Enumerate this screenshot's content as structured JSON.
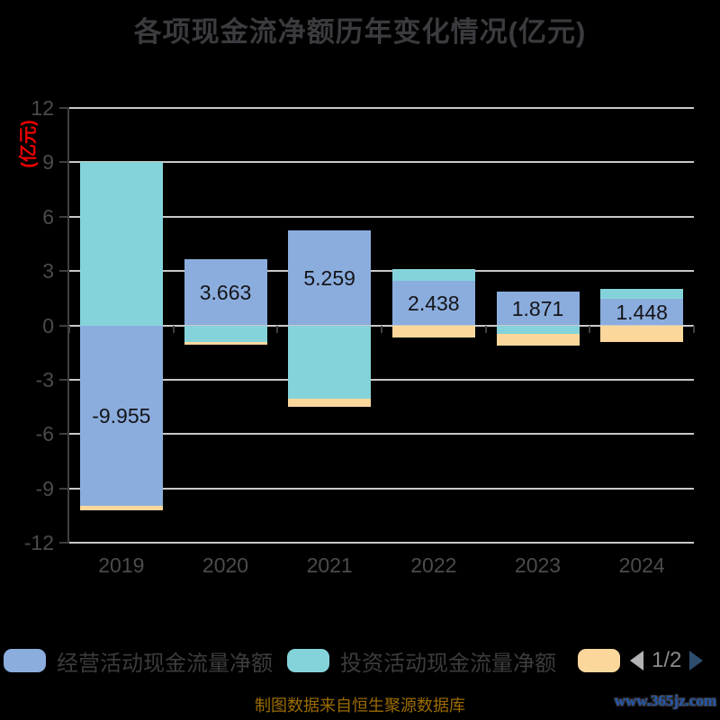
{
  "title": "各项现金流净额历年变化情况(亿元)",
  "y_axis": {
    "name": "(亿元)",
    "name_color": "#ee0000",
    "ticks": [
      12,
      9,
      6,
      3,
      0,
      -3,
      -6,
      -9,
      -12
    ],
    "min": -12,
    "max": 12
  },
  "chart_data": {
    "type": "bar",
    "stacked": true,
    "title": "各项现金流净额历年变化情况(亿元)",
    "ylabel": "(亿元)",
    "ylim": [
      -12,
      12
    ],
    "grid": true,
    "legend_position": "bottom",
    "categories": [
      "2019",
      "2020",
      "2021",
      "2022",
      "2023",
      "2024"
    ],
    "series": [
      {
        "name": "经营活动现金流量净额",
        "color": "#8badde",
        "values": [
          -9.955,
          3.663,
          5.259,
          2.438,
          1.871,
          1.448
        ],
        "data_labels": [
          "-9.955",
          "3.663",
          "5.259",
          "2.438",
          "1.871",
          "1.448"
        ],
        "labels_shown": true
      },
      {
        "name": "投资活动现金流量净额",
        "color": "#85d3da",
        "values": [
          9.0,
          -0.9,
          -4.05,
          0.65,
          -0.45,
          0.55
        ],
        "labels_shown": false
      },
      {
        "name": "",
        "color": "#fcd79c",
        "values": [
          -0.25,
          -0.15,
          -0.45,
          -0.65,
          -0.65,
          -0.9
        ],
        "labels_shown": false
      }
    ]
  },
  "legend": {
    "items": [
      {
        "label": "经营活动现金流量净额",
        "color": "#8badde"
      },
      {
        "label": "投资活动现金流量净额",
        "color": "#85d3da"
      },
      {
        "label": "",
        "color": "#fcd79c"
      }
    ],
    "pager": {
      "text": "1/2",
      "prev_color": "#b3b3b5",
      "next_color": "#2e4d6e"
    }
  },
  "footer": {
    "source": "制图数据来自恒生聚源数据库"
  },
  "watermark": "www.365jz.com",
  "colors": {
    "background": "#000000",
    "grid": "#c9c9cc",
    "axis": "#3f3f41",
    "tick_label": "#4b4b4d",
    "title": "#3b3b3f",
    "value_label": "#141417",
    "legend_text": "#3c3c3e",
    "pager_text": "#8c8c8e",
    "footer_text": "#9c6c00",
    "watermark_text": "#2257b0"
  }
}
